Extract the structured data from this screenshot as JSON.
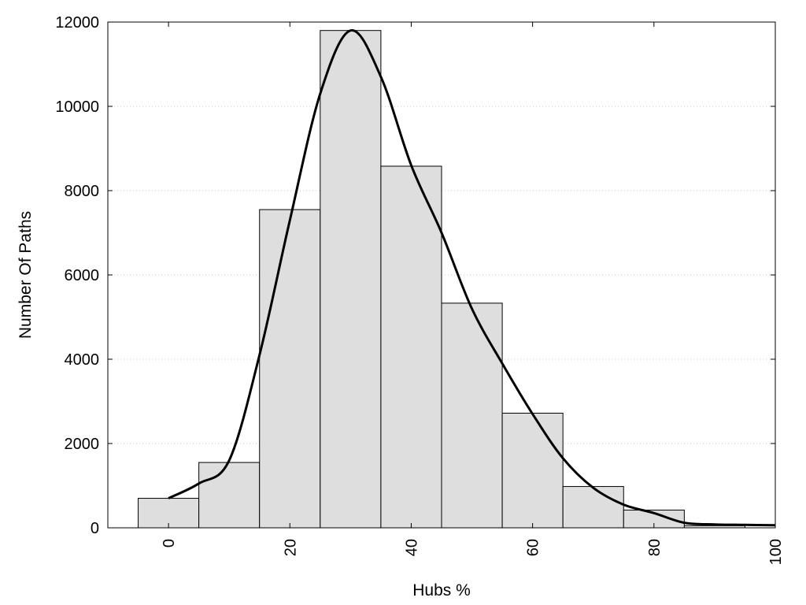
{
  "chart_data": {
    "type": "bar",
    "title": "",
    "xlabel": "Hubs %",
    "ylabel": "Number Of Paths",
    "xlim": [
      -10,
      100
    ],
    "ylim": [
      0,
      12000
    ],
    "x_ticks": [
      "0",
      "20",
      "40",
      "60",
      "80",
      "100"
    ],
    "y_ticks": [
      "0",
      "2000",
      "4000",
      "6000",
      "8000",
      "10000",
      "12000"
    ],
    "grid": "horizontal dotted",
    "bin_width": 10,
    "categories": [
      0,
      10,
      20,
      30,
      40,
      50,
      60,
      70,
      80,
      90
    ],
    "values": [
      700,
      1550,
      7550,
      11800,
      8580,
      5330,
      2720,
      980,
      420,
      50
    ],
    "density_curve": {
      "x": [
        0,
        5,
        10,
        15,
        20,
        25,
        30,
        35,
        40,
        45,
        50,
        55,
        60,
        65,
        70,
        75,
        80,
        85,
        90,
        95,
        100
      ],
      "y": [
        700,
        1050,
        1600,
        4100,
        7300,
        10300,
        11800,
        10700,
        8600,
        7000,
        5200,
        3900,
        2700,
        1650,
        950,
        550,
        350,
        120,
        80,
        70,
        60
      ]
    },
    "colors": {
      "bar_fill": "#dedede",
      "bar_stroke": "#000000",
      "curve": "#000000",
      "grid": "#c8c8c8"
    }
  }
}
